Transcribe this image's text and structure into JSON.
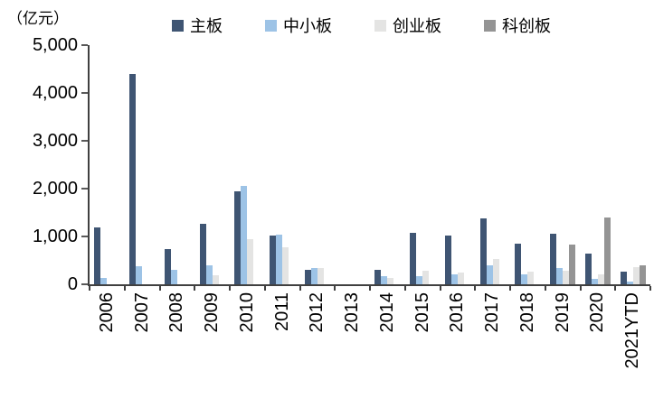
{
  "unit_label": "（亿元）",
  "chart_data": {
    "type": "bar",
    "title": "",
    "unit": "亿元",
    "ylabel": "（亿元）",
    "xlabel": "",
    "ylim": [
      0,
      5000
    ],
    "yticks": [
      0,
      1000,
      2000,
      3000,
      4000,
      5000
    ],
    "ytick_labels": [
      "0",
      "1,000",
      "2,000",
      "3,000",
      "4,000",
      "5,000"
    ],
    "grid": false,
    "legend_position": "top",
    "categories": [
      "2006",
      "2007",
      "2008",
      "2009",
      "2010",
      "2011",
      "2012",
      "2013",
      "2014",
      "2015",
      "2016",
      "2017",
      "2018",
      "2019",
      "2020",
      "2021YTD"
    ],
    "series": [
      {
        "name": "主板",
        "color": "#3F5573",
        "values": [
          1180,
          4400,
          730,
          1255,
          1940,
          1010,
          300,
          0,
          300,
          1080,
          1010,
          1370,
          855,
          1065,
          640,
          265
        ]
      },
      {
        "name": "中小板",
        "color": "#9DC3E6",
        "values": [
          140,
          385,
          295,
          400,
          2050,
          1040,
          345,
          0,
          175,
          165,
          200,
          390,
          205,
          340,
          110,
          55
        ]
      },
      {
        "name": "创业板",
        "color": "#E4E4E3",
        "values": [
          null,
          null,
          null,
          180,
          950,
          780,
          345,
          0,
          130,
          290,
          250,
          520,
          270,
          285,
          210,
          365
        ]
      },
      {
        "name": "科创板",
        "color": "#949494",
        "values": [
          null,
          null,
          null,
          null,
          null,
          null,
          null,
          null,
          null,
          null,
          null,
          null,
          null,
          835,
          1390,
          400
        ]
      }
    ]
  },
  "axis_color": "#404040"
}
